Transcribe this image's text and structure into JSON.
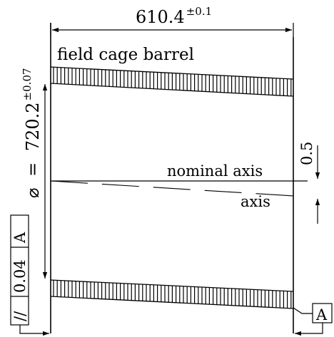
{
  "drawing": {
    "width_dimension": {
      "value": "610.4",
      "tolerance": "±0.1"
    },
    "diameter_dimension": {
      "symbol": "⌀",
      "equals": "=",
      "value": "720.2",
      "tolerance": "±0.07"
    },
    "offset_dimension": {
      "value": "0.5"
    },
    "labels": {
      "component": "field cage barrel",
      "nominal_axis": "nominal axis",
      "axis": "axis"
    },
    "feature_control_frame": {
      "symbol": "//",
      "tolerance": "0.04",
      "datum": "A"
    },
    "datum_tag": "A"
  }
}
